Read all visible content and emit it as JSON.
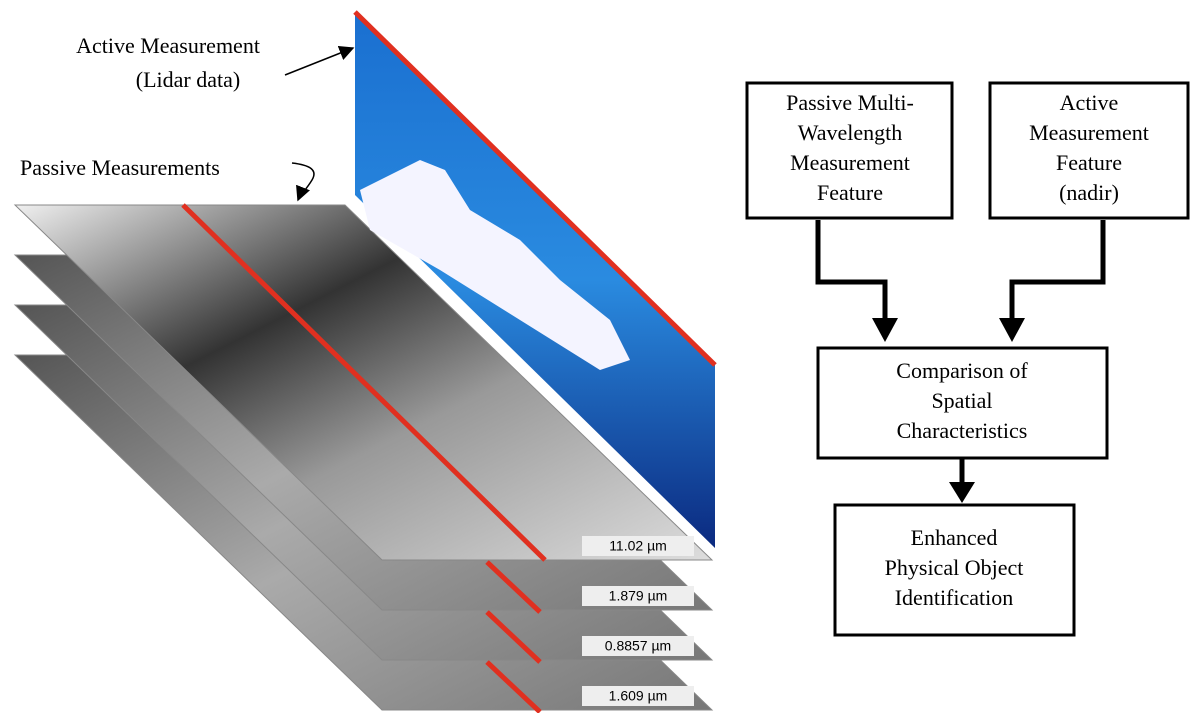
{
  "figure": {
    "annotations": {
      "active": [
        "Active Measurement",
        "(Lidar data)"
      ],
      "passive": "Passive Measurements"
    },
    "layers": [
      "11.02 µm",
      "1.879 µm",
      "0.8857 µm",
      "1.609 µm"
    ],
    "nodes": [
      {
        "lines": [
          "Passive Multi-",
          "Wavelength",
          "Measurement",
          "Feature"
        ]
      },
      {
        "lines": [
          "Active",
          "Measurement",
          "Feature",
          "(nadir)"
        ]
      },
      {
        "lines": [
          "Comparison of",
          "Spatial",
          "Characteristics"
        ]
      },
      {
        "lines": [
          "Enhanced",
          "Physical Object",
          "Identification"
        ]
      }
    ]
  }
}
